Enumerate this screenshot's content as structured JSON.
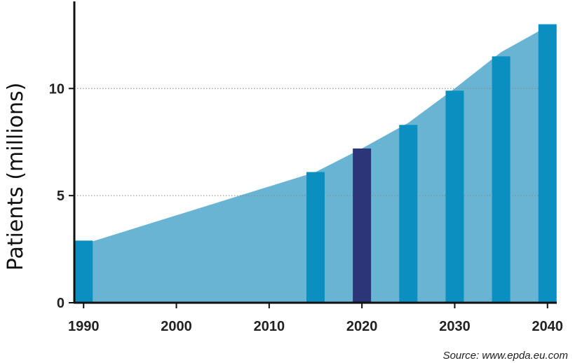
{
  "chart_data": {
    "type": "bar",
    "ylabel": "Patients (millions)",
    "xlabel": "",
    "xlim": [
      1989,
      2041
    ],
    "ylim": [
      0,
      14
    ],
    "yticks": [
      0,
      5,
      10
    ],
    "xticks": [
      "1990",
      "2000",
      "2010",
      "2020",
      "2030",
      "2040"
    ],
    "highlight_tick": "2020",
    "grid": "horizontal dotted at 5 and 10",
    "area_trend": [
      {
        "x": 1989,
        "y": 2.6
      },
      {
        "x": 2015,
        "y": 6.1
      },
      {
        "x": 2020,
        "y": 7.2
      },
      {
        "x": 2025,
        "y": 8.4
      },
      {
        "x": 2030,
        "y": 10.0
      },
      {
        "x": 2035,
        "y": 11.7
      },
      {
        "x": 2040,
        "y": 12.9
      }
    ],
    "bars": [
      {
        "x": 1990,
        "value": 2.9
      },
      {
        "x": 2015,
        "value": 6.1
      },
      {
        "x": 2020,
        "value": 7.2,
        "highlight": true
      },
      {
        "x": 2025,
        "value": 8.3
      },
      {
        "x": 2030,
        "value": 9.9
      },
      {
        "x": 2035,
        "value": 11.5
      },
      {
        "x": 2040,
        "value": 13.0
      }
    ],
    "source": "Source: www.epda.eu.com"
  },
  "colors": {
    "bar": "#0a8fc0",
    "bar_highlight": "#2b3577",
    "area": "#6ab4d3",
    "axis": "#111111",
    "grid": "#888888",
    "highlight_tick": "#2b3577"
  }
}
